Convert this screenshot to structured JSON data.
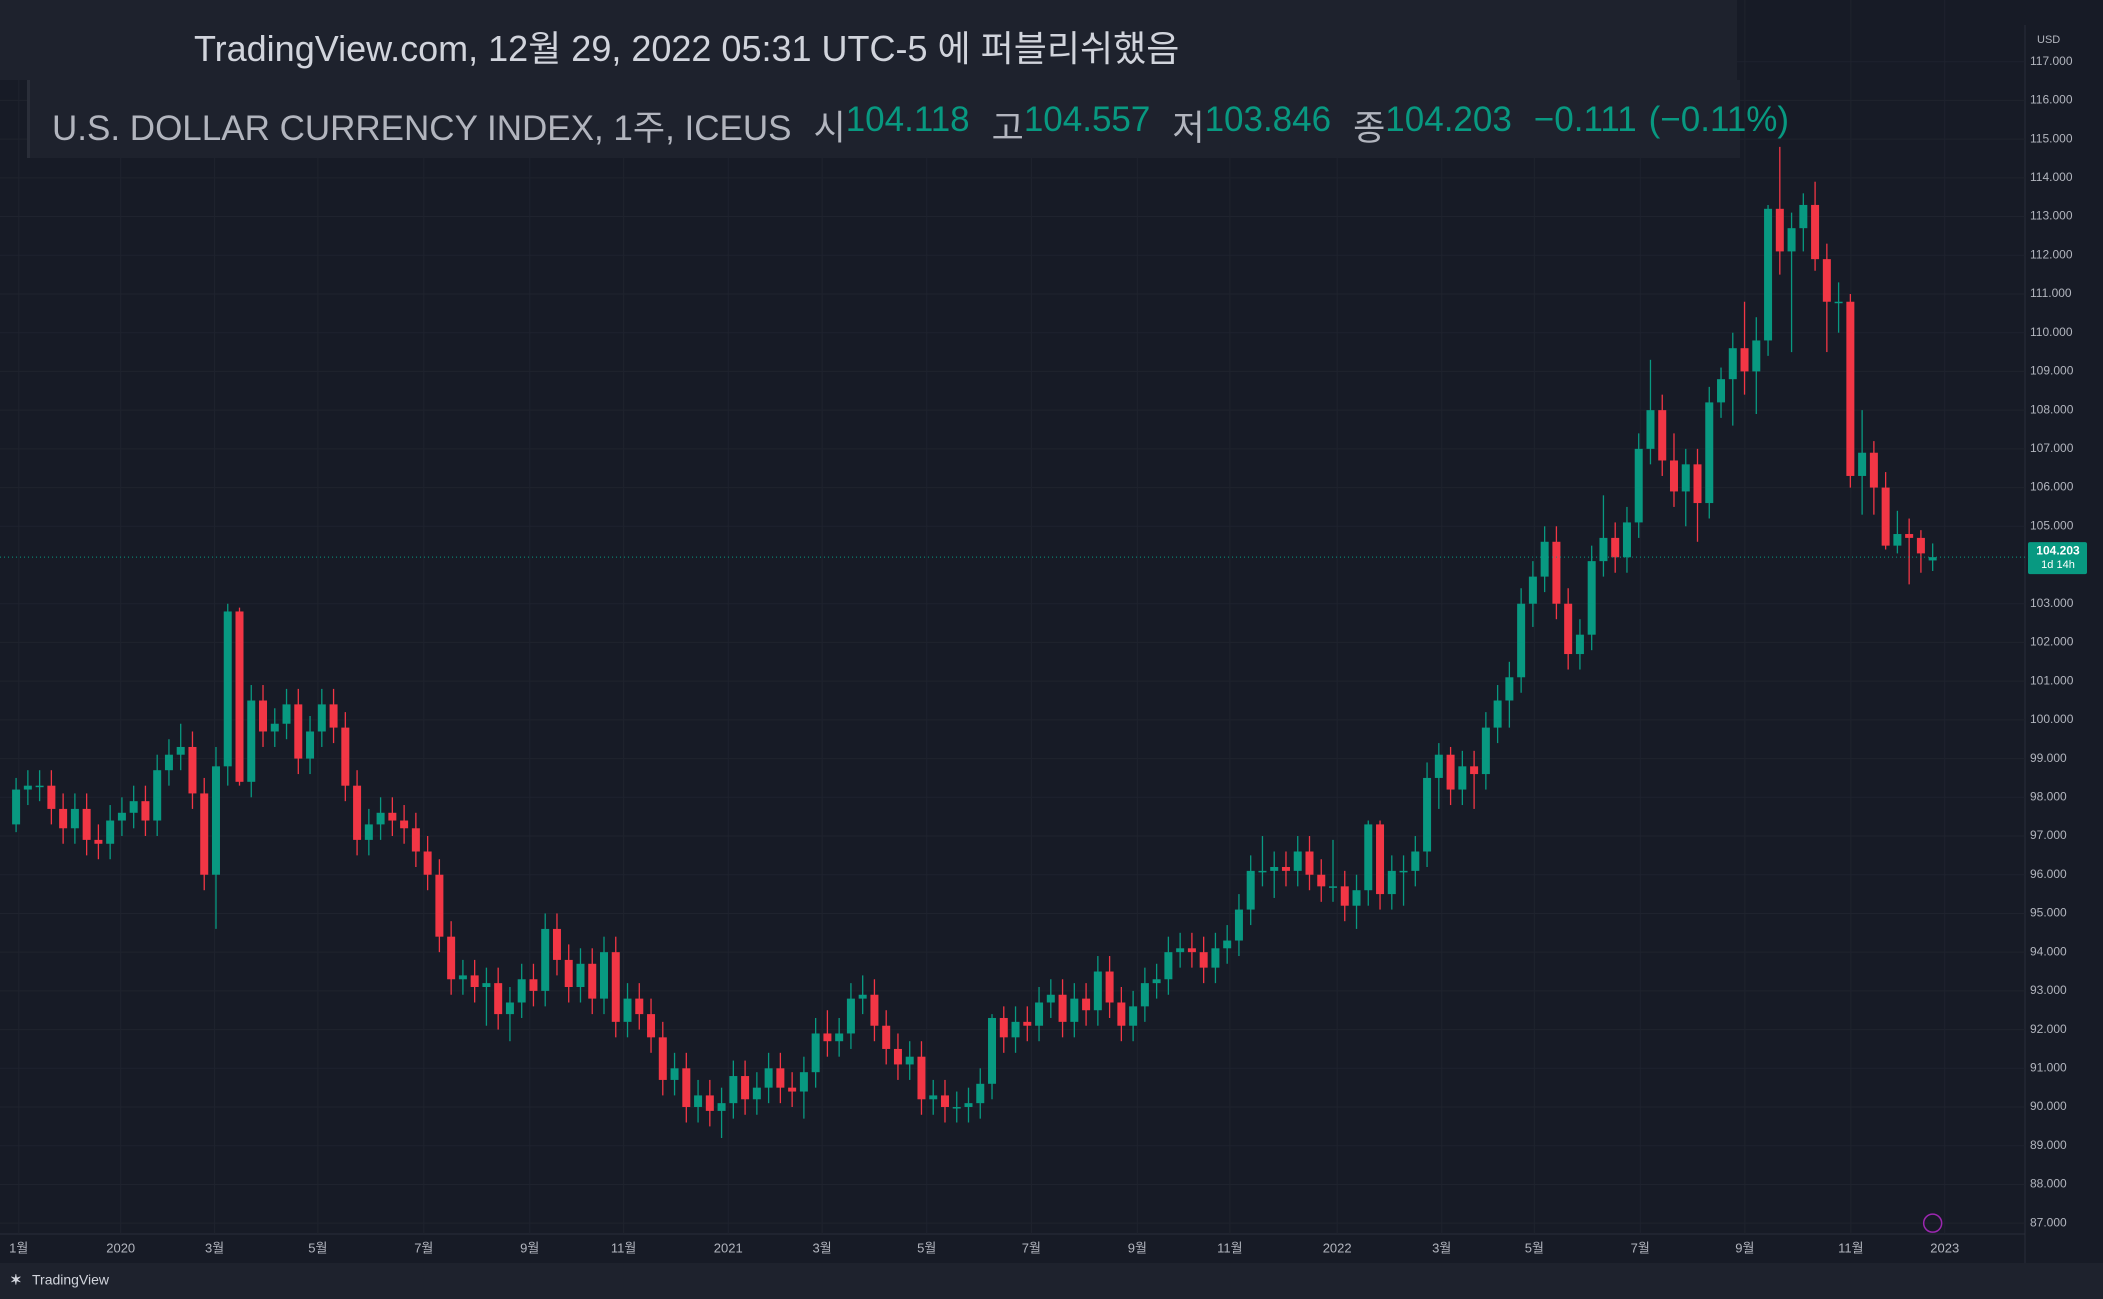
{
  "header": {
    "published": "TradingView.com, 12월 29, 2022 05:31 UTC-5 에 퍼블리쉬했음",
    "symbol": "U.S. DOLLAR CURRENCY INDEX, 1주, ICEUS",
    "open_label": "시",
    "high_label": "고",
    "low_label": "저",
    "close_label": "종",
    "change": "−0.111",
    "change_pct": "(−0.11%)"
  },
  "chart_data": {
    "type": "candlestick",
    "currency": "USD",
    "countdown": "1d 14h",
    "up_color": "#089981",
    "down_color": "#f23645",
    "grid": true,
    "x_tick_labels": [
      "1월",
      "2020",
      "3월",
      "5월",
      "7월",
      "9월",
      "11월",
      "2021",
      "3월",
      "5월",
      "7월",
      "9월",
      "11월",
      "2022",
      "3월",
      "5월",
      "7월",
      "9월",
      "11월",
      "2023"
    ],
    "ylim": [
      87,
      117
    ],
    "yticks": [
      {
        "value": 87,
        "label": "87.000"
      },
      {
        "value": 88,
        "label": "88.000"
      },
      {
        "value": 89,
        "label": "89.000"
      },
      {
        "value": 90,
        "label": "90.000"
      },
      {
        "value": 91,
        "label": "91.000"
      },
      {
        "value": 92,
        "label": "92.000"
      },
      {
        "value": 93,
        "label": "93.000"
      },
      {
        "value": 94,
        "label": "94.000"
      },
      {
        "value": 95,
        "label": "95.000"
      },
      {
        "value": 96,
        "label": "96.000"
      },
      {
        "value": 97,
        "label": "97.000"
      },
      {
        "value": 98,
        "label": "98.000"
      },
      {
        "value": 99,
        "label": "99.000"
      },
      {
        "value": 100,
        "label": "100.000"
      },
      {
        "value": 101,
        "label": "101.000"
      },
      {
        "value": 102,
        "label": "102.000"
      },
      {
        "value": 103,
        "label": "103.000"
      },
      {
        "value": 105,
        "label": "105.000"
      },
      {
        "value": 106,
        "label": "106.000"
      },
      {
        "value": 107,
        "label": "107.000"
      },
      {
        "value": 108,
        "label": "108.000"
      },
      {
        "value": 109,
        "label": "109.000"
      },
      {
        "value": 110,
        "label": "110.000"
      },
      {
        "value": 111,
        "label": "111.000"
      },
      {
        "value": 112,
        "label": "112.000"
      },
      {
        "value": 113,
        "label": "113.000"
      },
      {
        "value": 114,
        "label": "114.000"
      },
      {
        "value": 115,
        "label": "115.000"
      },
      {
        "value": 116,
        "label": "116.000"
      },
      {
        "value": 117,
        "label": "117.000"
      }
    ],
    "candles": [
      [
        97.3,
        98.5,
        97.1,
        98.2
      ],
      [
        98.2,
        98.7,
        97.8,
        98.3
      ],
      [
        98.3,
        98.7,
        97.9,
        98.3
      ],
      [
        98.3,
        98.7,
        97.3,
        97.7
      ],
      [
        97.7,
        98.1,
        96.8,
        97.2
      ],
      [
        97.2,
        98.1,
        96.8,
        97.7
      ],
      [
        97.7,
        98.1,
        96.5,
        96.9
      ],
      [
        96.9,
        97.3,
        96.4,
        96.8
      ],
      [
        96.8,
        97.8,
        96.4,
        97.4
      ],
      [
        97.4,
        98.0,
        97.0,
        97.6
      ],
      [
        97.6,
        98.3,
        97.2,
        97.9
      ],
      [
        97.9,
        98.3,
        97.0,
        97.4
      ],
      [
        97.4,
        99.1,
        97.0,
        98.7
      ],
      [
        98.7,
        99.5,
        98.3,
        99.1
      ],
      [
        99.1,
        99.9,
        98.7,
        99.3
      ],
      [
        99.3,
        99.7,
        97.7,
        98.1
      ],
      [
        98.1,
        98.5,
        95.6,
        96.0
      ],
      [
        96.0,
        99.3,
        94.6,
        98.8
      ],
      [
        98.8,
        103.0,
        98.3,
        102.8
      ],
      [
        102.8,
        102.9,
        98.3,
        98.4
      ],
      [
        98.4,
        100.9,
        98.0,
        100.5
      ],
      [
        100.5,
        100.9,
        99.3,
        99.7
      ],
      [
        99.7,
        100.3,
        99.3,
        99.9
      ],
      [
        99.9,
        100.8,
        99.5,
        100.4
      ],
      [
        100.4,
        100.8,
        98.6,
        99.0
      ],
      [
        99.0,
        100.1,
        98.6,
        99.7
      ],
      [
        99.7,
        100.8,
        99.3,
        100.4
      ],
      [
        100.4,
        100.8,
        99.4,
        99.8
      ],
      [
        99.8,
        100.2,
        97.9,
        98.3
      ],
      [
        98.3,
        98.7,
        96.5,
        96.9
      ],
      [
        96.9,
        97.7,
        96.5,
        97.3
      ],
      [
        97.3,
        98.0,
        96.9,
        97.6
      ],
      [
        97.6,
        98.0,
        97.0,
        97.4
      ],
      [
        97.4,
        97.8,
        96.8,
        97.2
      ],
      [
        97.2,
        97.6,
        96.2,
        96.6
      ],
      [
        96.6,
        97.0,
        95.6,
        96.0
      ],
      [
        96.0,
        96.4,
        94.0,
        94.4
      ],
      [
        94.4,
        94.8,
        92.9,
        93.3
      ],
      [
        93.3,
        93.8,
        92.9,
        93.4
      ],
      [
        93.4,
        93.8,
        92.7,
        93.1
      ],
      [
        93.1,
        93.6,
        92.1,
        93.2
      ],
      [
        93.2,
        93.6,
        92.0,
        92.4
      ],
      [
        92.4,
        93.1,
        91.7,
        92.7
      ],
      [
        92.7,
        93.7,
        92.3,
        93.3
      ],
      [
        93.3,
        93.7,
        92.6,
        93.0
      ],
      [
        93.0,
        95.0,
        92.6,
        94.6
      ],
      [
        94.6,
        95.0,
        93.4,
        93.8
      ],
      [
        93.8,
        94.2,
        92.7,
        93.1
      ],
      [
        93.1,
        94.1,
        92.7,
        93.7
      ],
      [
        93.7,
        94.1,
        92.4,
        92.8
      ],
      [
        92.8,
        94.4,
        92.4,
        94.0
      ],
      [
        94.0,
        94.4,
        91.8,
        92.2
      ],
      [
        92.2,
        93.2,
        91.8,
        92.8
      ],
      [
        92.8,
        93.2,
        92.0,
        92.4
      ],
      [
        92.4,
        92.8,
        91.4,
        91.8
      ],
      [
        91.8,
        92.2,
        90.3,
        90.7
      ],
      [
        90.7,
        91.4,
        90.3,
        91.0
      ],
      [
        91.0,
        91.4,
        89.6,
        90.0
      ],
      [
        90.0,
        90.7,
        89.6,
        90.3
      ],
      [
        90.3,
        90.7,
        89.5,
        89.9
      ],
      [
        89.9,
        90.5,
        89.2,
        90.1
      ],
      [
        90.1,
        91.2,
        89.7,
        90.8
      ],
      [
        90.8,
        91.2,
        89.8,
        90.2
      ],
      [
        90.2,
        90.9,
        89.8,
        90.5
      ],
      [
        90.5,
        91.4,
        90.1,
        91.0
      ],
      [
        91.0,
        91.4,
        90.1,
        90.5
      ],
      [
        90.5,
        90.9,
        90.0,
        90.4
      ],
      [
        90.4,
        91.3,
        89.7,
        90.9
      ],
      [
        90.9,
        92.3,
        90.5,
        91.9
      ],
      [
        91.9,
        92.5,
        91.3,
        91.7
      ],
      [
        91.7,
        92.3,
        91.3,
        91.9
      ],
      [
        91.9,
        93.2,
        91.5,
        92.8
      ],
      [
        92.8,
        93.4,
        92.4,
        92.9
      ],
      [
        92.9,
        93.3,
        91.7,
        92.1
      ],
      [
        92.1,
        92.5,
        91.1,
        91.5
      ],
      [
        91.5,
        91.9,
        90.7,
        91.1
      ],
      [
        91.1,
        91.7,
        90.7,
        91.3
      ],
      [
        91.3,
        91.7,
        89.8,
        90.2
      ],
      [
        90.2,
        90.7,
        89.8,
        90.3
      ],
      [
        90.3,
        90.7,
        89.6,
        90.0
      ],
      [
        90.0,
        90.4,
        89.6,
        90.0
      ],
      [
        90.0,
        90.5,
        89.6,
        90.1
      ],
      [
        90.1,
        91.0,
        89.7,
        90.6
      ],
      [
        90.6,
        92.4,
        90.2,
        92.3
      ],
      [
        92.3,
        92.6,
        91.4,
        91.8
      ],
      [
        91.8,
        92.6,
        91.4,
        92.2
      ],
      [
        92.2,
        92.6,
        91.7,
        92.1
      ],
      [
        92.1,
        93.1,
        91.7,
        92.7
      ],
      [
        92.7,
        93.3,
        92.3,
        92.9
      ],
      [
        92.9,
        93.3,
        91.8,
        92.2
      ],
      [
        92.2,
        93.2,
        91.8,
        92.8
      ],
      [
        92.8,
        93.2,
        92.1,
        92.5
      ],
      [
        92.5,
        93.9,
        92.1,
        93.5
      ],
      [
        93.5,
        93.9,
        92.3,
        92.7
      ],
      [
        92.7,
        93.1,
        91.7,
        92.1
      ],
      [
        92.1,
        93.0,
        91.7,
        92.6
      ],
      [
        92.6,
        93.6,
        92.2,
        93.2
      ],
      [
        93.2,
        93.7,
        92.8,
        93.3
      ],
      [
        93.3,
        94.4,
        92.9,
        94.0
      ],
      [
        94.0,
        94.5,
        93.6,
        94.1
      ],
      [
        94.1,
        94.5,
        93.6,
        94.0
      ],
      [
        94.0,
        94.4,
        93.2,
        93.6
      ],
      [
        93.6,
        94.5,
        93.2,
        94.1
      ],
      [
        94.1,
        94.7,
        93.7,
        94.3
      ],
      [
        94.3,
        95.5,
        93.9,
        95.1
      ],
      [
        95.1,
        96.5,
        94.7,
        96.1
      ],
      [
        96.1,
        97.0,
        95.7,
        96.1
      ],
      [
        96.1,
        96.6,
        95.4,
        96.2
      ],
      [
        96.2,
        96.6,
        95.7,
        96.1
      ],
      [
        96.1,
        97.0,
        95.7,
        96.6
      ],
      [
        96.6,
        97.0,
        95.6,
        96.0
      ],
      [
        96.0,
        96.4,
        95.3,
        95.7
      ],
      [
        95.7,
        96.9,
        95.3,
        95.7
      ],
      [
        95.7,
        96.1,
        94.8,
        95.2
      ],
      [
        95.2,
        96.0,
        94.6,
        95.6
      ],
      [
        95.6,
        97.4,
        95.2,
        97.3
      ],
      [
        97.3,
        97.4,
        95.1,
        95.5
      ],
      [
        95.5,
        96.5,
        95.1,
        96.1
      ],
      [
        96.1,
        96.5,
        95.2,
        96.1
      ],
      [
        96.1,
        97.0,
        95.7,
        96.6
      ],
      [
        96.6,
        98.9,
        96.2,
        98.5
      ],
      [
        98.5,
        99.4,
        97.7,
        99.1
      ],
      [
        99.1,
        99.3,
        97.8,
        98.2
      ],
      [
        98.2,
        99.2,
        97.8,
        98.8
      ],
      [
        98.8,
        99.2,
        97.7,
        98.6
      ],
      [
        98.6,
        100.2,
        98.2,
        99.8
      ],
      [
        99.8,
        100.9,
        99.4,
        100.5
      ],
      [
        100.5,
        101.5,
        99.8,
        101.1
      ],
      [
        101.1,
        103.4,
        100.7,
        103.0
      ],
      [
        103.0,
        104.1,
        102.4,
        103.7
      ],
      [
        103.7,
        105.0,
        103.3,
        104.6
      ],
      [
        104.6,
        105.0,
        102.6,
        103.0
      ],
      [
        103.0,
        103.4,
        101.3,
        101.7
      ],
      [
        101.7,
        102.6,
        101.3,
        102.2
      ],
      [
        102.2,
        104.5,
        101.8,
        104.1
      ],
      [
        104.1,
        105.8,
        103.7,
        104.7
      ],
      [
        104.7,
        105.1,
        103.8,
        104.2
      ],
      [
        104.2,
        105.5,
        103.8,
        105.1
      ],
      [
        105.1,
        107.4,
        104.7,
        107.0
      ],
      [
        107.0,
        109.3,
        106.6,
        108.0
      ],
      [
        108.0,
        108.4,
        106.3,
        106.7
      ],
      [
        106.7,
        107.4,
        105.5,
        105.9
      ],
      [
        105.9,
        107.0,
        105.0,
        106.6
      ],
      [
        106.6,
        107.0,
        104.6,
        105.6
      ],
      [
        105.6,
        108.6,
        105.2,
        108.2
      ],
      [
        108.2,
        109.1,
        107.8,
        108.8
      ],
      [
        108.8,
        110.0,
        107.6,
        109.6
      ],
      [
        109.6,
        110.8,
        108.4,
        109.0
      ],
      [
        109.0,
        110.4,
        107.9,
        109.8
      ],
      [
        109.8,
        113.3,
        109.4,
        113.2
      ],
      [
        113.2,
        114.8,
        111.5,
        112.1
      ],
      [
        112.1,
        113.1,
        109.5,
        112.7
      ],
      [
        112.7,
        113.6,
        112.1,
        113.3
      ],
      [
        113.3,
        113.9,
        111.6,
        111.9
      ],
      [
        111.9,
        112.3,
        109.5,
        110.8
      ],
      [
        110.8,
        111.3,
        110.0,
        110.8
      ],
      [
        110.8,
        111.0,
        106.0,
        106.3
      ],
      [
        106.3,
        108.0,
        105.3,
        106.9
      ],
      [
        106.9,
        107.2,
        105.3,
        106.0
      ],
      [
        106.0,
        106.4,
        104.4,
        104.5
      ],
      [
        104.5,
        105.4,
        104.3,
        104.8
      ],
      [
        104.8,
        105.2,
        103.5,
        104.7
      ],
      [
        104.7,
        104.9,
        103.8,
        104.3
      ],
      [
        104.118,
        104.557,
        103.846,
        104.203
      ]
    ]
  },
  "footer": {
    "brand": "TradingView"
  }
}
